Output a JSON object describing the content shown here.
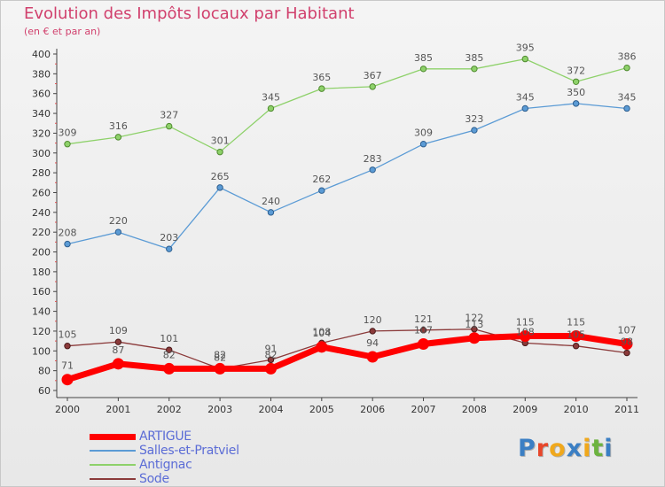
{
  "page": {
    "title": "Evolution des Impôts locaux par Habitant",
    "subtitle": "(en € et par an)"
  },
  "logo": {
    "letters": [
      {
        "ch": "P",
        "color": "#3b7fc4"
      },
      {
        "ch": "r",
        "color": "#e8462a"
      },
      {
        "ch": "o",
        "color": "#f0a81c"
      },
      {
        "ch": "x",
        "color": "#3b7fc4"
      },
      {
        "ch": "i",
        "color": "#f0a81c"
      },
      {
        "ch": "t",
        "color": "#6cb33f"
      },
      {
        "ch": "i",
        "color": "#3b7fc4"
      }
    ]
  },
  "chart_data": {
    "type": "line",
    "categories": [
      "2000",
      "2001",
      "2002",
      "2003",
      "2004",
      "2005",
      "2006",
      "2007",
      "2008",
      "2009",
      "2010",
      "2011"
    ],
    "ylim": [
      60,
      400
    ],
    "yticks": [
      60,
      80,
      100,
      120,
      140,
      160,
      180,
      200,
      220,
      240,
      260,
      280,
      300,
      320,
      340,
      360,
      380,
      400
    ],
    "grid": false,
    "legend_position": "bottom-left",
    "series": [
      {
        "name": "ARTIGUE",
        "color": "#ff0000",
        "values": [
          71,
          87,
          82,
          82,
          82,
          104,
          94,
          107,
          113,
          115,
          115,
          107
        ],
        "labels": [
          "71",
          "87",
          "82",
          "82",
          "82",
          "104",
          "94",
          "107",
          "113",
          "115",
          "115",
          "107"
        ]
      },
      {
        "name": "Salles-et-Pratviel",
        "color": "#5b9bd5",
        "values": [
          208,
          220,
          203,
          265,
          240,
          262,
          283,
          309,
          323,
          345,
          350,
          345
        ],
        "labels": [
          "208",
          "220",
          "203",
          "265",
          "240",
          "262",
          "283",
          "309",
          "323",
          "345",
          "350",
          "345"
        ]
      },
      {
        "name": "Antignac",
        "color": "#8ed16a",
        "values": [
          309,
          316,
          327,
          301,
          345,
          365,
          367,
          385,
          385,
          395,
          372,
          386
        ],
        "labels": [
          "309",
          "316",
          "327",
          "301",
          "345",
          "365",
          "367",
          "385",
          "385",
          "395",
          "372",
          "386"
        ]
      },
      {
        "name": "Sode",
        "color": "#8b3a3a",
        "values": [
          105,
          109,
          101,
          82,
          91,
          108,
          120,
          121,
          122,
          108,
          105,
          98
        ],
        "labels": [
          "105",
          "109",
          "101",
          "82",
          "91",
          "108",
          "120",
          "121",
          "122",
          "108",
          "105",
          "98"
        ]
      }
    ]
  }
}
